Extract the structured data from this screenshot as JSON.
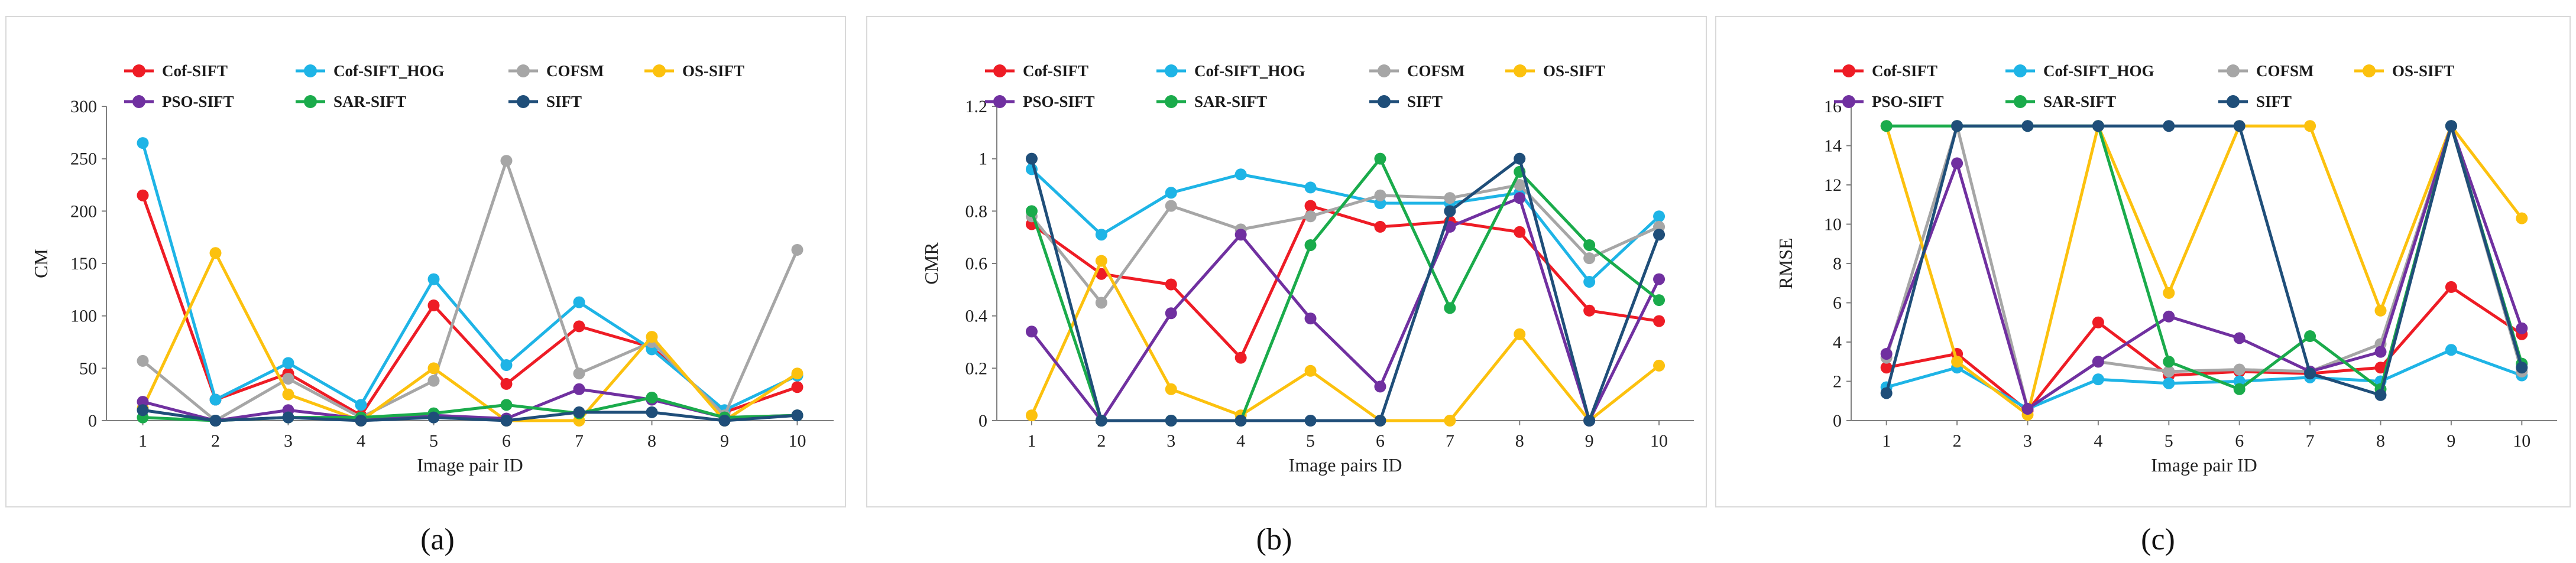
{
  "chart_data": [
    {
      "type": "line",
      "panel_caption": "(a)",
      "title": "",
      "xlabel": "Image pair ID",
      "ylabel": "CM",
      "ylim": [
        0,
        300
      ],
      "yticks": [
        0,
        50,
        100,
        150,
        200,
        250,
        300
      ],
      "x": [
        1,
        2,
        3,
        4,
        5,
        6,
        7,
        8,
        9,
        10
      ],
      "legend_position": "top",
      "series": [
        {
          "name": "Cof-SIFT",
          "color": "#ee1c25",
          "values": [
            215,
            20,
            45,
            5,
            110,
            35,
            90,
            70,
            8,
            32
          ]
        },
        {
          "name": "Cof-SIFT_HOG",
          "color": "#1eb4e6",
          "values": [
            265,
            20,
            55,
            15,
            135,
            53,
            113,
            68,
            10,
            43
          ]
        },
        {
          "name": "COFSM",
          "color": "#a6a6a6",
          "values": [
            57,
            0,
            40,
            3,
            38,
            248,
            45,
            75,
            5,
            163
          ]
        },
        {
          "name": "OS-SIFT",
          "color": "#fcc10e",
          "values": [
            12,
            160,
            25,
            0,
            50,
            0,
            0,
            80,
            0,
            45
          ]
        },
        {
          "name": "PSO-SIFT",
          "color": "#7030a0",
          "values": [
            18,
            0,
            10,
            2,
            5,
            2,
            30,
            20,
            3,
            5
          ]
        },
        {
          "name": "SAR-SIFT",
          "color": "#1aab4b",
          "values": [
            3,
            0,
            3,
            3,
            7,
            15,
            7,
            22,
            3,
            5
          ]
        },
        {
          "name": "SIFT",
          "color": "#1f4e79",
          "values": [
            10,
            0,
            3,
            0,
            3,
            0,
            8,
            8,
            0,
            5
          ]
        }
      ]
    },
    {
      "type": "line",
      "panel_caption": "(b)",
      "title": "",
      "xlabel": "Image pairs ID",
      "ylabel": "CMR",
      "ylim": [
        0,
        1.2
      ],
      "yticks": [
        0,
        0.2,
        0.4,
        0.6,
        0.8,
        1,
        1.2
      ],
      "x": [
        1,
        2,
        3,
        4,
        5,
        6,
        7,
        8,
        9,
        10
      ],
      "legend_position": "top",
      "series": [
        {
          "name": "Cof-SIFT",
          "color": "#ee1c25",
          "values": [
            0.75,
            0.56,
            0.52,
            0.24,
            0.82,
            0.74,
            0.76,
            0.72,
            0.42,
            0.38
          ]
        },
        {
          "name": "Cof-SIFT_HOG",
          "color": "#1eb4e6",
          "values": [
            0.96,
            0.71,
            0.87,
            0.94,
            0.89,
            0.83,
            0.83,
            0.87,
            0.53,
            0.78
          ]
        },
        {
          "name": "COFSM",
          "color": "#a6a6a6",
          "values": [
            0.78,
            0.45,
            0.82,
            0.73,
            0.78,
            0.86,
            0.85,
            0.9,
            0.62,
            0.74
          ]
        },
        {
          "name": "OS-SIFT",
          "color": "#fcc10e",
          "values": [
            0.02,
            0.61,
            0.12,
            0.02,
            0.19,
            0,
            0,
            0.33,
            0,
            0.21
          ]
        },
        {
          "name": "PSO-SIFT",
          "color": "#7030a0",
          "values": [
            0.34,
            0,
            0.41,
            0.71,
            0.39,
            0.13,
            0.74,
            0.85,
            0,
            0.54
          ]
        },
        {
          "name": "SAR-SIFT",
          "color": "#1aab4b",
          "values": [
            0.8,
            0,
            0,
            0,
            0.67,
            1,
            0.43,
            0.95,
            0.67,
            0.46
          ]
        },
        {
          "name": "SIFT",
          "color": "#1f4e79",
          "values": [
            1,
            0,
            0,
            0,
            0,
            0,
            0.8,
            1,
            0,
            0.71
          ]
        }
      ]
    },
    {
      "type": "line",
      "panel_caption": "(c)",
      "title": "",
      "xlabel": "Image pair ID",
      "ylabel": "RMSE",
      "ylim": [
        0,
        16
      ],
      "yticks": [
        0,
        2,
        4,
        6,
        8,
        10,
        12,
        14,
        16
      ],
      "x": [
        1,
        2,
        3,
        4,
        5,
        6,
        7,
        8,
        9,
        10
      ],
      "legend_position": "top",
      "series": [
        {
          "name": "Cof-SIFT",
          "color": "#ee1c25",
          "values": [
            2.7,
            3.4,
            0.5,
            5.0,
            2.3,
            2.5,
            2.4,
            2.7,
            6.8,
            4.4
          ]
        },
        {
          "name": "Cof-SIFT_HOG",
          "color": "#1eb4e6",
          "values": [
            1.7,
            2.7,
            0.6,
            2.1,
            1.9,
            2.0,
            2.2,
            2.0,
            3.6,
            2.3
          ]
        },
        {
          "name": "COFSM",
          "color": "#a6a6a6",
          "values": [
            3.2,
            15,
            0.6,
            3.0,
            2.5,
            2.6,
            2.5,
            3.9,
            15,
            2.5
          ]
        },
        {
          "name": "OS-SIFT",
          "color": "#fcc10e",
          "values": [
            15,
            3.0,
            0.3,
            15,
            6.5,
            15,
            15,
            5.6,
            15,
            10.3
          ]
        },
        {
          "name": "PSO-SIFT",
          "color": "#7030a0",
          "values": [
            3.4,
            13.1,
            0.6,
            3.0,
            5.3,
            4.2,
            2.5,
            3.5,
            15,
            4.7
          ]
        },
        {
          "name": "SAR-SIFT",
          "color": "#1aab4b",
          "values": [
            15,
            15,
            15,
            15,
            3.0,
            1.6,
            4.3,
            1.6,
            15,
            2.9
          ]
        },
        {
          "name": "SIFT",
          "color": "#1f4e79",
          "values": [
            1.4,
            15,
            15,
            15,
            15,
            15,
            2.4,
            1.3,
            15,
            2.7
          ]
        }
      ]
    }
  ]
}
